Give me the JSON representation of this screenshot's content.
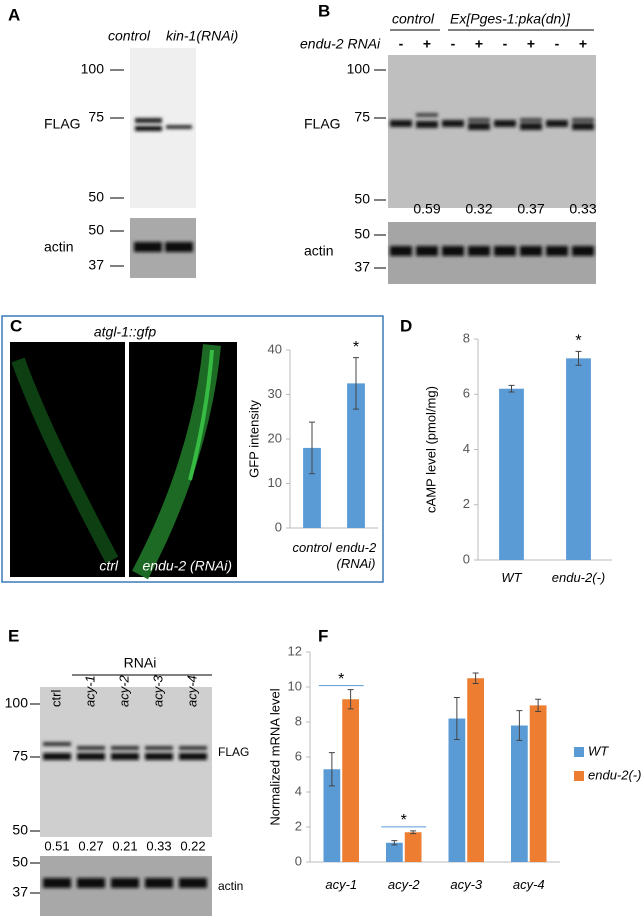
{
  "panel_a": {
    "label": "A",
    "lanes": [
      "control",
      "kin-1(RNAi)"
    ],
    "blot_label": "FLAG",
    "markers": [
      "100",
      "75",
      "50"
    ],
    "loading_label": "actin",
    "loading_markers": [
      "50",
      "37"
    ]
  },
  "panel_b": {
    "label": "B",
    "group_labels": [
      "control",
      "Ex[Pges-1:pka(dn)]"
    ],
    "treatment_label": "endu-2 RNAi",
    "lanes": [
      "-",
      "+",
      "-",
      "+",
      "-",
      "+",
      "-",
      "+"
    ],
    "blot_label": "FLAG",
    "markers": [
      "100",
      "75",
      "50"
    ],
    "ratios": [
      "0.59",
      "0.32",
      "0.37",
      "0.33"
    ],
    "loading_label": "actin",
    "loading_markers": [
      "50",
      "37"
    ]
  },
  "panel_c": {
    "label": "C",
    "image_title": "atgl-1::gfp",
    "image_labels": [
      "ctrl",
      "endu-2 (RNAi)"
    ]
  },
  "panel_d": {
    "label": "D"
  },
  "panel_e": {
    "label": "E",
    "group_label": "RNAi",
    "lanes": [
      "ctrl",
      "acy-1",
      "acy-2",
      "acy-3",
      "acy-4"
    ],
    "blot_label": "FLAG",
    "markers": [
      "100",
      "75",
      "50"
    ],
    "ratios": [
      "0.51",
      "0.27",
      "0.21",
      "0.33",
      "0.22"
    ],
    "loading_label": "actin",
    "loading_markers": [
      "50",
      "37"
    ]
  },
  "panel_f": {
    "label": "F"
  },
  "chart_data": [
    {
      "type": "bar",
      "y_label": "GFP intensity",
      "categories": [
        "control",
        "endu-2 (RNAi)"
      ],
      "values": [
        18,
        32.5
      ],
      "errors": [
        5.8,
        5.8
      ],
      "color": "#5b9bd5",
      "ylim": [
        0,
        40
      ],
      "yticks": [
        0,
        10,
        20,
        30,
        40
      ],
      "annotations": [
        "*"
      ]
    },
    {
      "type": "bar",
      "y_label": "cAMP level (pmol/mg)",
      "categories": [
        "WT",
        "endu-2(-)"
      ],
      "values": [
        6.2,
        7.3
      ],
      "errors": [
        0.12,
        0.25
      ],
      "color": "#5b9bd5",
      "ylim": [
        0,
        8
      ],
      "yticks": [
        0,
        2,
        4,
        6,
        8
      ],
      "annotations": [
        "*"
      ]
    },
    {
      "type": "bar",
      "y_label": "Normalized mRNA level",
      "categories": [
        "acy-1",
        "acy-2",
        "acy-3",
        "acy-4"
      ],
      "series": [
        {
          "name": "WT",
          "color": "#5b9bd5",
          "values": [
            5.3,
            1.1,
            8.2,
            7.8
          ],
          "errors": [
            0.95,
            0.12,
            1.2,
            0.85
          ]
        },
        {
          "name": "endu-2(-)",
          "color": "#ed7d31",
          "values": [
            9.3,
            1.7,
            10.5,
            8.95
          ],
          "errors": [
            0.55,
            0.08,
            0.3,
            0.35
          ]
        }
      ],
      "ylim": [
        0,
        12
      ],
      "yticks": [
        0,
        2,
        4,
        6,
        8,
        10,
        12
      ],
      "legend": "right",
      "annotations": [
        "*",
        "*"
      ]
    }
  ]
}
